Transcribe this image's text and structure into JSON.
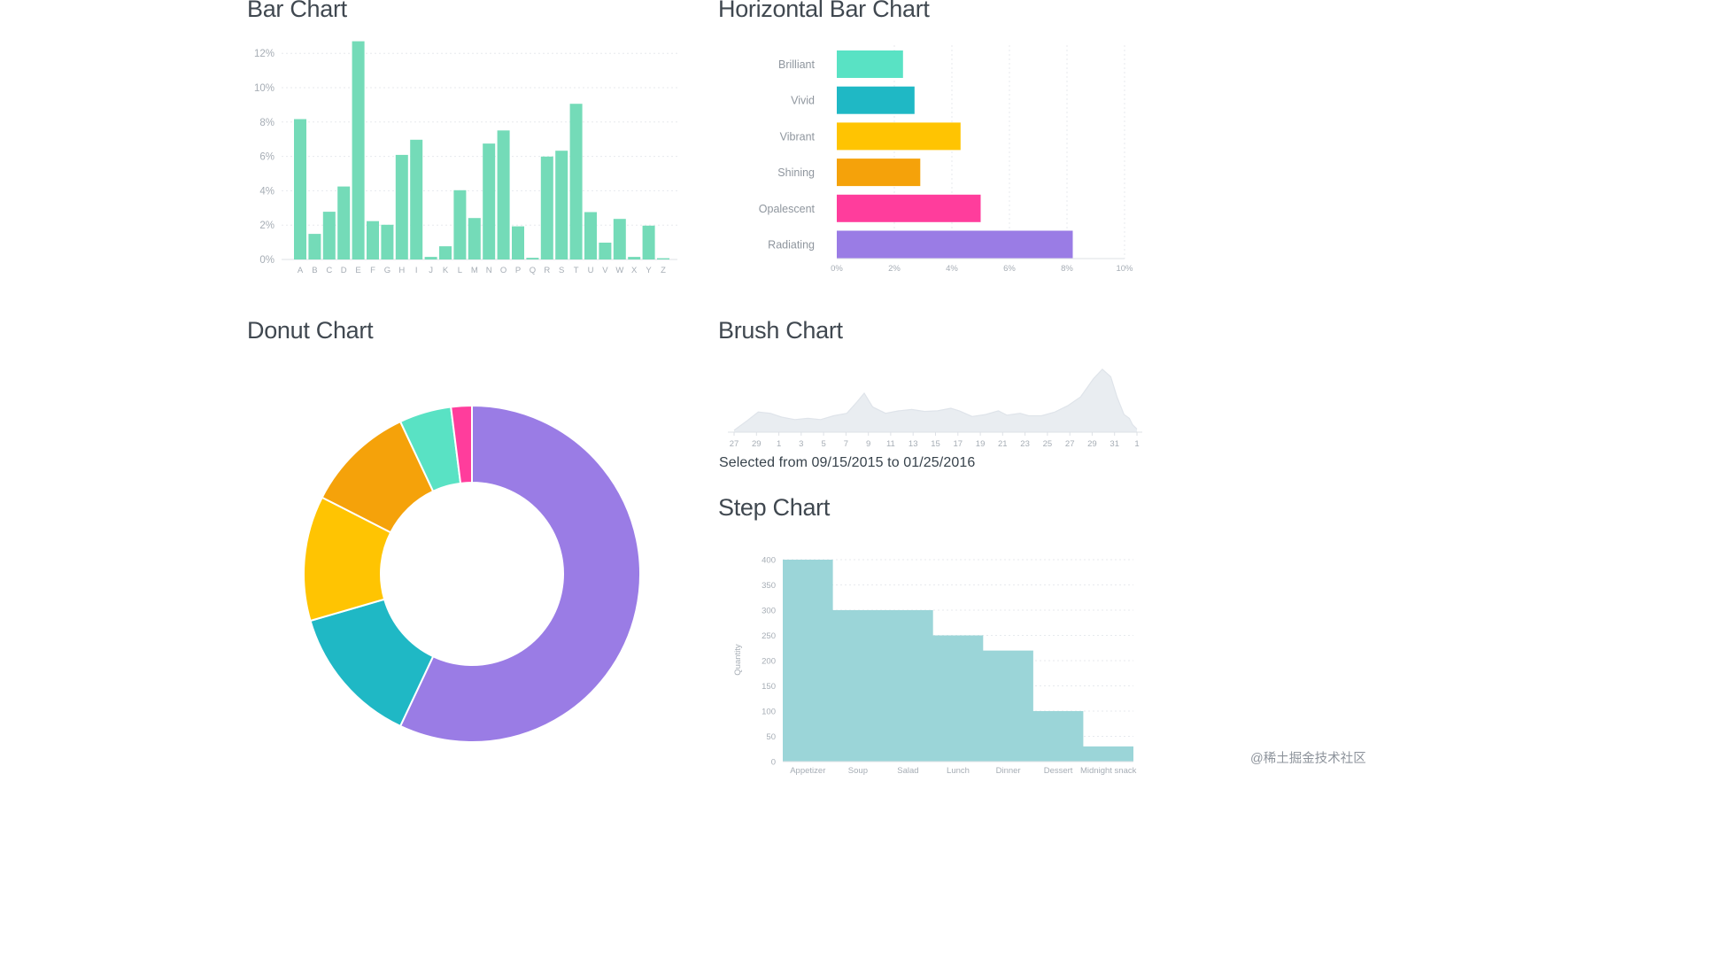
{
  "page": {
    "watermark": "@稀土掘金技术社区"
  },
  "chart_data": [
    {
      "id": "bar",
      "type": "bar",
      "title": "Bar Chart",
      "categories": [
        "A",
        "B",
        "C",
        "D",
        "E",
        "F",
        "G",
        "H",
        "I",
        "J",
        "K",
        "L",
        "M",
        "N",
        "O",
        "P",
        "Q",
        "R",
        "S",
        "T",
        "U",
        "V",
        "W",
        "X",
        "Y",
        "Z"
      ],
      "values": [
        8.17,
        1.49,
        2.78,
        4.25,
        12.7,
        2.23,
        2.02,
        6.09,
        6.97,
        0.15,
        0.77,
        4.03,
        2.41,
        6.75,
        7.51,
        1.93,
        0.1,
        5.99,
        6.33,
        9.06,
        2.76,
        0.98,
        2.36,
        0.15,
        1.97,
        0.07
      ],
      "y_ticks": [
        "0%",
        "2%",
        "4%",
        "6%",
        "8%",
        "10%",
        "12%"
      ],
      "ylim": [
        0,
        12.7
      ],
      "bar_color": "#74dbb8"
    },
    {
      "id": "horizontal_bar",
      "type": "bar",
      "orientation": "horizontal",
      "title": "Horizontal Bar Chart",
      "x_ticks": [
        "0%",
        "2%",
        "4%",
        "6%",
        "8%",
        "10%"
      ],
      "xlim": [
        0,
        10
      ],
      "series": [
        {
          "label": "Brilliant",
          "value": 2.3,
          "color": "#59e2c4"
        },
        {
          "label": "Vivid",
          "value": 2.7,
          "color": "#1fb8c5"
        },
        {
          "label": "Vibrant",
          "value": 4.3,
          "color": "#ffc402"
        },
        {
          "label": "Shining",
          "value": 2.9,
          "color": "#f5a20a"
        },
        {
          "label": "Opalescent",
          "value": 5.0,
          "color": "#ff3d9c"
        },
        {
          "label": "Radiating",
          "value": 8.2,
          "color": "#9a7ce5"
        }
      ]
    },
    {
      "id": "donut",
      "type": "pie",
      "title": "Donut Chart",
      "segments": [
        {
          "value": 57.0,
          "color": "#9a7ce5"
        },
        {
          "value": 13.5,
          "color": "#1fb8c5"
        },
        {
          "value": 12.0,
          "color": "#ffc402"
        },
        {
          "value": 10.5,
          "color": "#f5a20a"
        },
        {
          "value": 5.0,
          "color": "#59e2c4"
        },
        {
          "value": 2.0,
          "color": "#ff3d9c"
        }
      ]
    },
    {
      "id": "brush",
      "type": "area",
      "title": "Brush Chart",
      "x_ticks": [
        "27",
        "29",
        "1",
        "3",
        "5",
        "7",
        "9",
        "11",
        "13",
        "15",
        "17",
        "19",
        "21",
        "23",
        "25",
        "27",
        "29",
        "31",
        "1"
      ],
      "area": [
        [
          0.0,
          0.03
        ],
        [
          0.032,
          0.18
        ],
        [
          0.06,
          0.32
        ],
        [
          0.09,
          0.3
        ],
        [
          0.118,
          0.24
        ],
        [
          0.151,
          0.2
        ],
        [
          0.183,
          0.22
        ],
        [
          0.215,
          0.2
        ],
        [
          0.247,
          0.26
        ],
        [
          0.28,
          0.3
        ],
        [
          0.305,
          0.48
        ],
        [
          0.323,
          0.62
        ],
        [
          0.344,
          0.4
        ],
        [
          0.376,
          0.3
        ],
        [
          0.409,
          0.34
        ],
        [
          0.441,
          0.36
        ],
        [
          0.473,
          0.33
        ],
        [
          0.505,
          0.34
        ],
        [
          0.538,
          0.38
        ],
        [
          0.559,
          0.34
        ],
        [
          0.591,
          0.25
        ],
        [
          0.624,
          0.28
        ],
        [
          0.656,
          0.34
        ],
        [
          0.677,
          0.27
        ],
        [
          0.71,
          0.3
        ],
        [
          0.731,
          0.26
        ],
        [
          0.763,
          0.26
        ],
        [
          0.796,
          0.32
        ],
        [
          0.828,
          0.42
        ],
        [
          0.86,
          0.56
        ],
        [
          0.892,
          0.85
        ],
        [
          0.914,
          1.0
        ],
        [
          0.935,
          0.88
        ],
        [
          0.951,
          0.55
        ],
        [
          0.968,
          0.28
        ],
        [
          0.981,
          0.22
        ],
        [
          0.989,
          0.12
        ],
        [
          1.0,
          0.05
        ]
      ],
      "area_color": "#e9edf1",
      "line_color": "#dfe4ea",
      "selection_label": "Selected from 09/15/2015 to 01/25/2016"
    },
    {
      "id": "step",
      "type": "area",
      "title": "Step Chart",
      "categories": [
        "Appetizer",
        "Soup",
        "Salad",
        "Lunch",
        "Dinner",
        "Dessert",
        "Midnight snack"
      ],
      "values": [
        400,
        300,
        300,
        250,
        220,
        100,
        30
      ],
      "y_ticks": [
        0,
        50,
        100,
        150,
        200,
        250,
        300,
        350,
        400
      ],
      "ylim": [
        0,
        400
      ],
      "ylabel": "Quantity",
      "color": "#9bd5d8"
    }
  ]
}
